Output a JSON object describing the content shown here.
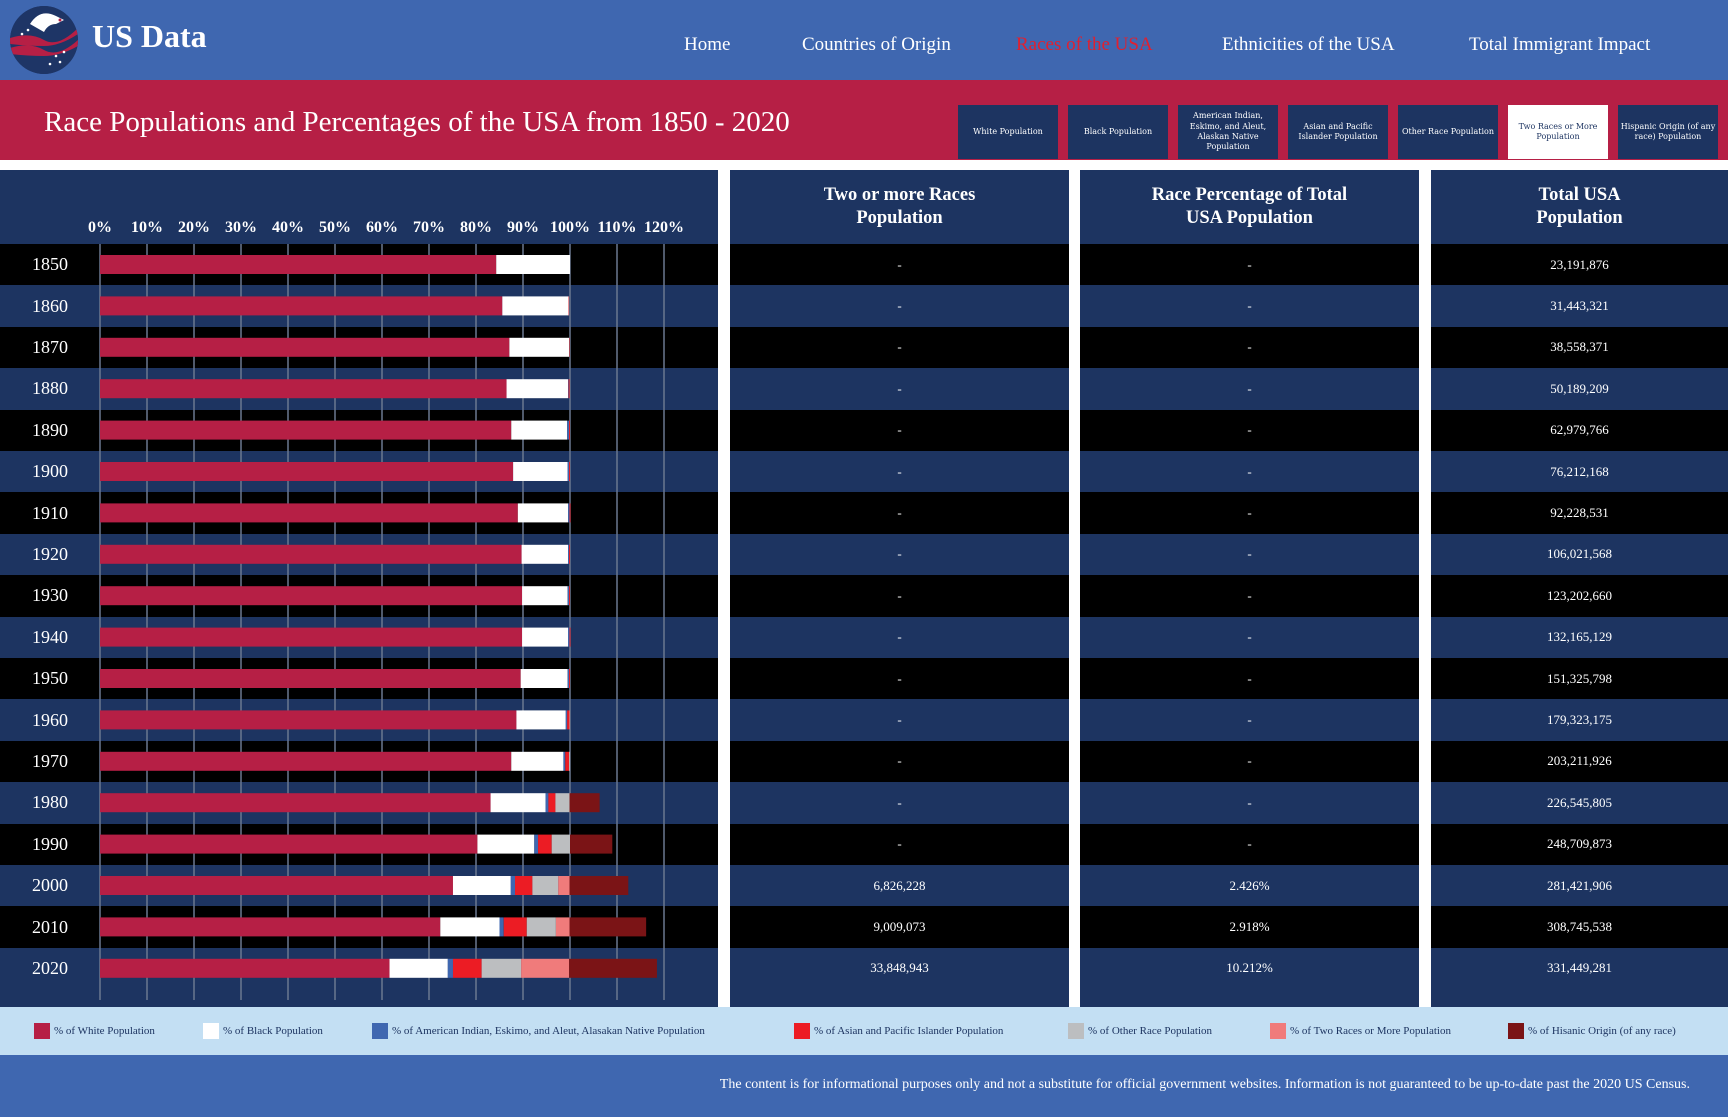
{
  "header": {
    "brand": "US Data",
    "logo_icon": "eagle-flag-logo",
    "nav": [
      {
        "label": "Home",
        "active": false
      },
      {
        "label": "Countries of Origin",
        "active": false
      },
      {
        "label": "Races of the USA",
        "active": true
      },
      {
        "label": "Ethnicities of the USA",
        "active": false
      },
      {
        "label": "Total Immigrant Impact",
        "active": false
      }
    ]
  },
  "page_title": "Race Populations and Percentages of the USA from 1850 - 2020",
  "filters": [
    {
      "label": "White Population",
      "active": false
    },
    {
      "label": "Black Population",
      "active": false
    },
    {
      "label": "American Indian, Eskimo, and Aleut, Alaskan Native Population",
      "active": false
    },
    {
      "label": "Asian and Pacific Islander Population",
      "active": false
    },
    {
      "label": "Other Race Population",
      "active": false
    },
    {
      "label": "Two Races or More Population",
      "active": true
    },
    {
      "label": "Hispanic Origin (of any race) Population",
      "active": false
    }
  ],
  "table": {
    "headers": [
      "Two or more Races Population",
      "Race Percentage of Total USA Population",
      "Total USA Population"
    ],
    "rows": [
      {
        "year": "1850",
        "pop": "-",
        "pct": "-",
        "total": "23,191,876"
      },
      {
        "year": "1860",
        "pop": "-",
        "pct": "-",
        "total": "31,443,321"
      },
      {
        "year": "1870",
        "pop": "-",
        "pct": "-",
        "total": "38,558,371"
      },
      {
        "year": "1880",
        "pop": "-",
        "pct": "-",
        "total": "50,189,209"
      },
      {
        "year": "1890",
        "pop": "-",
        "pct": "-",
        "total": "62,979,766"
      },
      {
        "year": "1900",
        "pop": "-",
        "pct": "-",
        "total": "76,212,168"
      },
      {
        "year": "1910",
        "pop": "-",
        "pct": "-",
        "total": "92,228,531"
      },
      {
        "year": "1920",
        "pop": "-",
        "pct": "-",
        "total": "106,021,568"
      },
      {
        "year": "1930",
        "pop": "-",
        "pct": "-",
        "total": "123,202,660"
      },
      {
        "year": "1940",
        "pop": "-",
        "pct": "-",
        "total": "132,165,129"
      },
      {
        "year": "1950",
        "pop": "-",
        "pct": "-",
        "total": "151,325,798"
      },
      {
        "year": "1960",
        "pop": "-",
        "pct": "-",
        "total": "179,323,175"
      },
      {
        "year": "1970",
        "pop": "-",
        "pct": "-",
        "total": "203,211,926"
      },
      {
        "year": "1980",
        "pop": "-",
        "pct": "-",
        "total": "226,545,805"
      },
      {
        "year": "1990",
        "pop": "-",
        "pct": "-",
        "total": "248,709,873"
      },
      {
        "year": "2000",
        "pop": "6,826,228",
        "pct": "2.426%",
        "total": "281,421,906"
      },
      {
        "year": "2010",
        "pop": "9,009,073",
        "pct": "2.918%",
        "total": "308,745,538"
      },
      {
        "year": "2020",
        "pop": "33,848,943",
        "pct": "10.212%",
        "total": "331,449,281"
      }
    ]
  },
  "legend": [
    {
      "label": "% of White Population",
      "color": "#b61f45"
    },
    {
      "label": "% of Black Population",
      "color": "#ffffff"
    },
    {
      "label": "% of American Indian, Eskimo, and Aleut, Alasakan Native Population",
      "color": "#3f67b0"
    },
    {
      "label": "% of Asian and Pacific Islander Population",
      "color": "#ec1c24"
    },
    {
      "label": "% of Other Race Population",
      "color": "#bcbec0"
    },
    {
      "label": "% of Two Races or More Population",
      "color": "#f07b7b"
    },
    {
      "label": "% of Hisanic Origin (of any race)",
      "color": "#7b1416"
    }
  ],
  "footer": "The content is for informational purposes only and not a substitute for official government websites. Information is not guaranteed to be up-to-date past the 2020 US Census.",
  "chart_data": {
    "type": "bar",
    "orientation": "horizontal-stacked",
    "title": "Race Populations and Percentages of the USA from 1850 - 2020",
    "xlabel": "",
    "ylabel": "",
    "xlim": [
      0,
      120
    ],
    "x_ticks": [
      "0%",
      "10%",
      "20%",
      "30%",
      "40%",
      "50%",
      "60%",
      "70%",
      "80%",
      "90%",
      "100%",
      "110%",
      "120%"
    ],
    "grid": true,
    "legend_position": "bottom",
    "categories": [
      "1850",
      "1860",
      "1870",
      "1880",
      "1890",
      "1900",
      "1910",
      "1920",
      "1930",
      "1940",
      "1950",
      "1960",
      "1970",
      "1980",
      "1990",
      "2000",
      "2010",
      "2020"
    ],
    "series": [
      {
        "name": "% of White Population",
        "color": "#b61f45",
        "values": [
          84.3,
          85.6,
          87.1,
          86.5,
          87.5,
          87.9,
          88.9,
          89.7,
          89.8,
          89.8,
          89.5,
          88.6,
          87.5,
          83.1,
          80.3,
          75.1,
          72.4,
          61.6
        ]
      },
      {
        "name": "% of Black Population",
        "color": "#ffffff",
        "values": [
          15.7,
          14.1,
          12.7,
          13.1,
          11.9,
          11.6,
          10.7,
          9.9,
          9.7,
          9.8,
          10.0,
          10.5,
          11.1,
          11.7,
          12.1,
          12.3,
          12.6,
          12.4
        ]
      },
      {
        "name": "% of American Indian, Eskimo, and Aleut, Alasakan Native Population",
        "color": "#3f67b0",
        "values": [
          0,
          0,
          0,
          0.1,
          0.4,
          0.3,
          0.3,
          0.2,
          0.3,
          0.3,
          0.3,
          0.3,
          0.4,
          0.6,
          0.8,
          0.9,
          0.9,
          1.1
        ]
      },
      {
        "name": "% of Asian and Pacific Islander Population",
        "color": "#ec1c24",
        "values": [
          0,
          0.1,
          0.1,
          0.2,
          0.2,
          0.2,
          0.2,
          0.2,
          0.2,
          0.2,
          0.2,
          0.5,
          0.8,
          1.5,
          2.9,
          3.7,
          4.9,
          6.1
        ]
      },
      {
        "name": "% of Other Race Population",
        "color": "#bcbec0",
        "values": [
          0,
          0,
          0,
          0,
          0,
          0,
          0,
          0,
          0,
          0,
          0,
          0.1,
          0.2,
          3.0,
          3.9,
          5.5,
          6.2,
          8.4
        ]
      },
      {
        "name": "% of Two Races or More Population",
        "color": "#f07b7b",
        "values": [
          0,
          0,
          0,
          0,
          0,
          0,
          0,
          0,
          0,
          0,
          0,
          0,
          0,
          0,
          0,
          2.4,
          2.9,
          10.2
        ]
      },
      {
        "name": "% of Hisanic Origin (of any race)",
        "color": "#7b1416",
        "values": [
          0,
          0,
          0,
          0,
          0,
          0,
          0,
          0,
          0,
          0,
          0,
          0,
          0,
          6.4,
          9.0,
          12.5,
          16.3,
          18.7
        ]
      }
    ]
  }
}
